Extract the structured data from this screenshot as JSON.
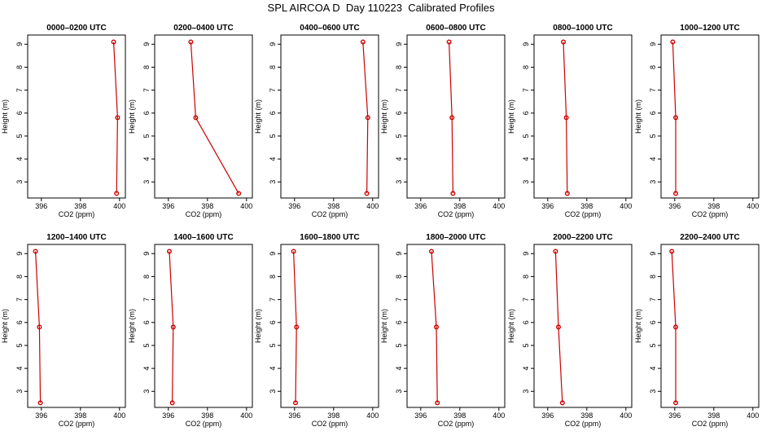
{
  "figure": {
    "title": "SPL AIRCOA D  Day 110223  Calibrated Profiles"
  },
  "chart_data": {
    "type": "line",
    "xlabel": "CO2 (ppm)",
    "ylabel": "Height (m)",
    "xlim": [
      395.3,
      400.3
    ],
    "ylim": [
      2.3,
      9.4
    ],
    "xticks": [
      396,
      398,
      400
    ],
    "yticks": [
      3,
      4,
      5,
      6,
      7,
      8,
      9
    ],
    "grid": false,
    "line_color": "#cc0000",
    "heights": [
      2.5,
      5.8,
      9.1
    ],
    "panels": [
      {
        "title": "0000–0200 UTC",
        "co2": [
          399.85,
          399.9,
          399.7
        ]
      },
      {
        "title": "0200–0400 UTC",
        "co2": [
          399.6,
          397.4,
          397.15
        ]
      },
      {
        "title": "0400–0600 UTC",
        "co2": [
          399.7,
          399.75,
          399.5
        ]
      },
      {
        "title": "0600–0800 UTC",
        "co2": [
          397.65,
          397.6,
          397.45
        ]
      },
      {
        "title": "0800–1000 UTC",
        "co2": [
          397.0,
          396.95,
          396.8
        ]
      },
      {
        "title": "1000–1200 UTC",
        "co2": [
          396.05,
          396.05,
          395.9
        ]
      },
      {
        "title": "1200–1400 UTC",
        "co2": [
          395.95,
          395.9,
          395.7
        ]
      },
      {
        "title": "1400–1600 UTC",
        "co2": [
          396.2,
          396.25,
          396.05
        ]
      },
      {
        "title": "1600–1800 UTC",
        "co2": [
          396.05,
          396.1,
          395.95
        ]
      },
      {
        "title": "1800–2000 UTC",
        "co2": [
          396.85,
          396.8,
          396.55
        ]
      },
      {
        "title": "2000–2200 UTC",
        "co2": [
          396.75,
          396.55,
          396.4
        ]
      },
      {
        "title": "2200–2400 UTC",
        "co2": [
          396.05,
          396.05,
          395.85
        ]
      }
    ]
  }
}
